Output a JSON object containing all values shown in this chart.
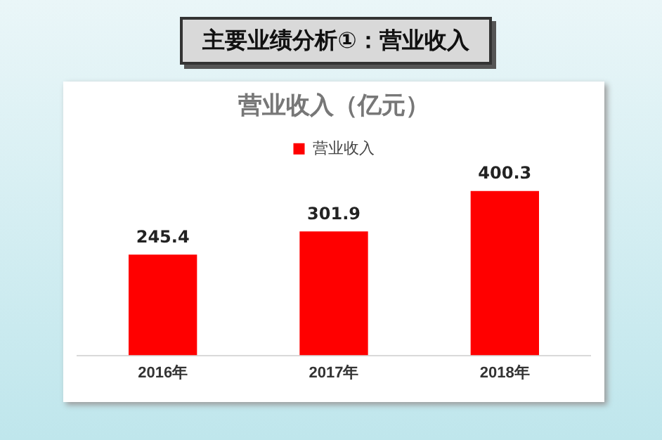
{
  "chart_data": {
    "type": "bar",
    "title": "主要业绩分析①：营业收入",
    "subtitle": "营业收入（亿元）",
    "categories": [
      "2016年",
      "2017年",
      "2018年"
    ],
    "series": [
      {
        "name": "营业收入",
        "color": "#ff0000",
        "values": [
          245.4,
          301.9,
          400.3
        ]
      }
    ],
    "data_labels": true,
    "legend": "top",
    "grid": false
  }
}
